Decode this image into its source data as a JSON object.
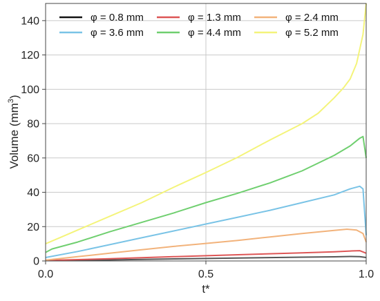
{
  "chart_data": {
    "type": "line",
    "xlabel": "t*",
    "ylabel": "Volume (mm",
    "ylabel_sup": "3",
    "ylabel_close": ")",
    "xlim": [
      0,
      1
    ],
    "ylim": [
      0,
      150
    ],
    "x_ticks": [
      {
        "value": 0,
        "label": "0.0"
      },
      {
        "value": 0.5,
        "label": "0.5"
      },
      {
        "value": 1,
        "label": "1.0"
      }
    ],
    "y_ticks": [
      {
        "value": 0,
        "label": "0"
      },
      {
        "value": 20,
        "label": "20"
      },
      {
        "value": 40,
        "label": "40"
      },
      {
        "value": 60,
        "label": "60"
      },
      {
        "value": 80,
        "label": "80"
      },
      {
        "value": 100,
        "label": "100"
      },
      {
        "value": 120,
        "label": "120"
      },
      {
        "value": 140,
        "label": "140"
      }
    ],
    "grid": true,
    "legend_placement": "top",
    "series": [
      {
        "name": "φ = 0.8 mm",
        "color": "#555555",
        "x": [
          0,
          0.2,
          0.4,
          0.6,
          0.8,
          0.9,
          0.95,
          0.98,
          1.0
        ],
        "y": [
          0.2,
          0.6,
          1.2,
          1.7,
          2.2,
          2.4,
          2.6,
          2.5,
          2.0
        ]
      },
      {
        "name": "φ = 1.3 mm",
        "color": "#dd5555",
        "x": [
          0,
          0.2,
          0.4,
          0.6,
          0.8,
          0.9,
          0.95,
          0.98,
          1.0
        ],
        "y": [
          0.3,
          1.3,
          2.5,
          3.6,
          4.7,
          5.3,
          5.8,
          6.0,
          4.5
        ]
      },
      {
        "name": "φ = 2.4 mm",
        "color": "#f2b27a",
        "x": [
          0,
          0.1,
          0.2,
          0.3,
          0.4,
          0.5,
          0.6,
          0.7,
          0.8,
          0.9,
          0.94,
          0.97,
          0.99,
          1.0
        ],
        "y": [
          0.5,
          2.5,
          4.5,
          6.5,
          8.5,
          10.2,
          12.0,
          14.0,
          16.0,
          17.8,
          18.5,
          18.0,
          16.0,
          11.0
        ]
      },
      {
        "name": "φ = 3.6 mm",
        "color": "#79c3e6",
        "x": [
          0,
          0.1,
          0.2,
          0.3,
          0.4,
          0.5,
          0.6,
          0.7,
          0.8,
          0.9,
          0.95,
          0.98,
          0.99,
          1.0
        ],
        "y": [
          2,
          5.5,
          9.5,
          13.5,
          17.5,
          21.5,
          25.5,
          29.5,
          34,
          38.5,
          42,
          43.5,
          42,
          15
        ]
      },
      {
        "name": "φ = 4.4 mm",
        "color": "#6fcf6f",
        "x": [
          0,
          0.02,
          0.1,
          0.2,
          0.3,
          0.4,
          0.5,
          0.6,
          0.7,
          0.8,
          0.9,
          0.95,
          0.98,
          0.99,
          1.0
        ],
        "y": [
          5,
          7,
          11,
          17,
          22.5,
          28,
          34,
          39.5,
          45.5,
          52.5,
          61.5,
          67,
          71.5,
          72.5,
          60
        ]
      },
      {
        "name": "φ = 5.2 mm",
        "color": "#f4f47a",
        "x": [
          0,
          0.05,
          0.1,
          0.2,
          0.3,
          0.4,
          0.5,
          0.6,
          0.7,
          0.8,
          0.85,
          0.9,
          0.93,
          0.95,
          0.97,
          0.99,
          1.0
        ],
        "y": [
          10,
          14,
          18,
          26,
          34,
          43,
          51.5,
          60.5,
          70.5,
          80,
          86,
          95,
          101,
          106,
          115,
          132,
          150
        ]
      }
    ]
  }
}
